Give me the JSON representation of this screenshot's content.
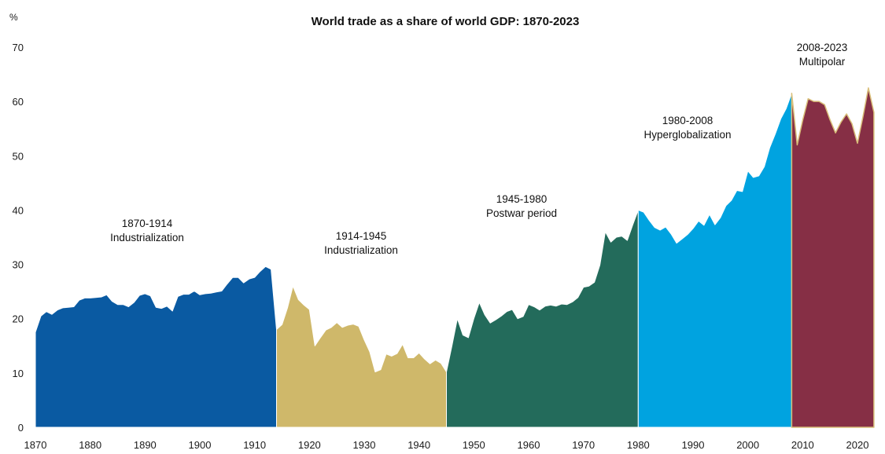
{
  "chart_data": {
    "type": "area",
    "title": "World trade as a share of world GDP: 1870-2023",
    "ylabel": "%",
    "xlabel": "",
    "ylim": [
      0,
      70
    ],
    "xlim": [
      1870,
      2023
    ],
    "yticks": [
      "0",
      "10",
      "20",
      "30",
      "40",
      "50",
      "60",
      "70"
    ],
    "xticks": [
      "1870",
      "1880",
      "1890",
      "1900",
      "1910",
      "1920",
      "1930",
      "1940",
      "1950",
      "1960",
      "1970",
      "1980",
      "1990",
      "2000",
      "2010",
      "2020"
    ],
    "grid": false,
    "periods": [
      {
        "label": "1870-1914",
        "name": "Industrialization",
        "color": "#0a5aa2",
        "start": 1870,
        "values": [
          17.5,
          20.5,
          21.3,
          20.8,
          21.6,
          22.0,
          22.1,
          22.2,
          23.4,
          23.8,
          23.8,
          23.9,
          24.0,
          24.4,
          23.2,
          22.6,
          22.6,
          22.2,
          23.0,
          24.3,
          24.6,
          24.2,
          22.1,
          21.9,
          22.3,
          21.4,
          24.1,
          24.5,
          24.5,
          25.1,
          24.4,
          24.6,
          24.7,
          24.9,
          25.1,
          26.4,
          27.6,
          27.6,
          26.6,
          27.3,
          27.6,
          28.7,
          29.6,
          29.1,
          18.0
        ]
      },
      {
        "label": "1914-1945",
        "name": "Industrialization",
        "color": "#cfb86a",
        "start": 1914,
        "values": [
          18.0,
          18.9,
          22.0,
          26.0,
          23.5,
          22.5,
          21.7,
          15.0,
          16.5,
          17.9,
          18.4,
          19.3,
          18.4,
          18.8,
          19.0,
          18.6,
          16.1,
          13.9,
          10.2,
          10.6,
          13.5,
          13.1,
          13.6,
          15.3,
          12.8,
          12.8,
          13.7,
          12.6,
          11.7,
          12.4,
          11.8,
          10.2
        ]
      },
      {
        "label": "1945-1980",
        "name": "Postwar period",
        "color": "#236b5b",
        "start": 1945,
        "values": [
          10.2,
          15.0,
          20.0,
          17.0,
          16.5,
          20.0,
          23.0,
          20.7,
          19.2,
          19.8,
          20.5,
          21.3,
          21.7,
          20.0,
          20.4,
          22.6,
          22.2,
          21.6,
          22.3,
          22.5,
          22.3,
          22.7,
          22.6,
          23.1,
          23.9,
          25.8,
          26.0,
          26.7,
          29.9,
          36.0,
          34.1,
          35.0,
          35.2,
          34.4,
          37.3,
          40.0
        ]
      },
      {
        "label": "1980-2008",
        "name": "Hyperglobalization",
        "color": "#00a3e0",
        "start": 1980,
        "values": [
          40.0,
          39.6,
          38.1,
          36.8,
          36.3,
          36.9,
          35.6,
          33.9,
          34.7,
          35.5,
          36.6,
          38.0,
          37.2,
          39.2,
          37.3,
          38.6,
          40.8,
          41.8,
          43.6,
          43.4,
          47.2,
          46.0,
          46.3,
          48.0,
          51.5,
          54.0,
          56.8,
          58.7,
          61.5
        ]
      },
      {
        "label": "2008-2023",
        "name": "Multipolar",
        "color": "#862f45",
        "start": 2008,
        "values": [
          61.5,
          52.0,
          56.5,
          60.5,
          60.0,
          60.0,
          59.4,
          56.6,
          54.2,
          56.2,
          57.7,
          55.9,
          52.3,
          57.2,
          62.5,
          58.0
        ]
      }
    ]
  }
}
